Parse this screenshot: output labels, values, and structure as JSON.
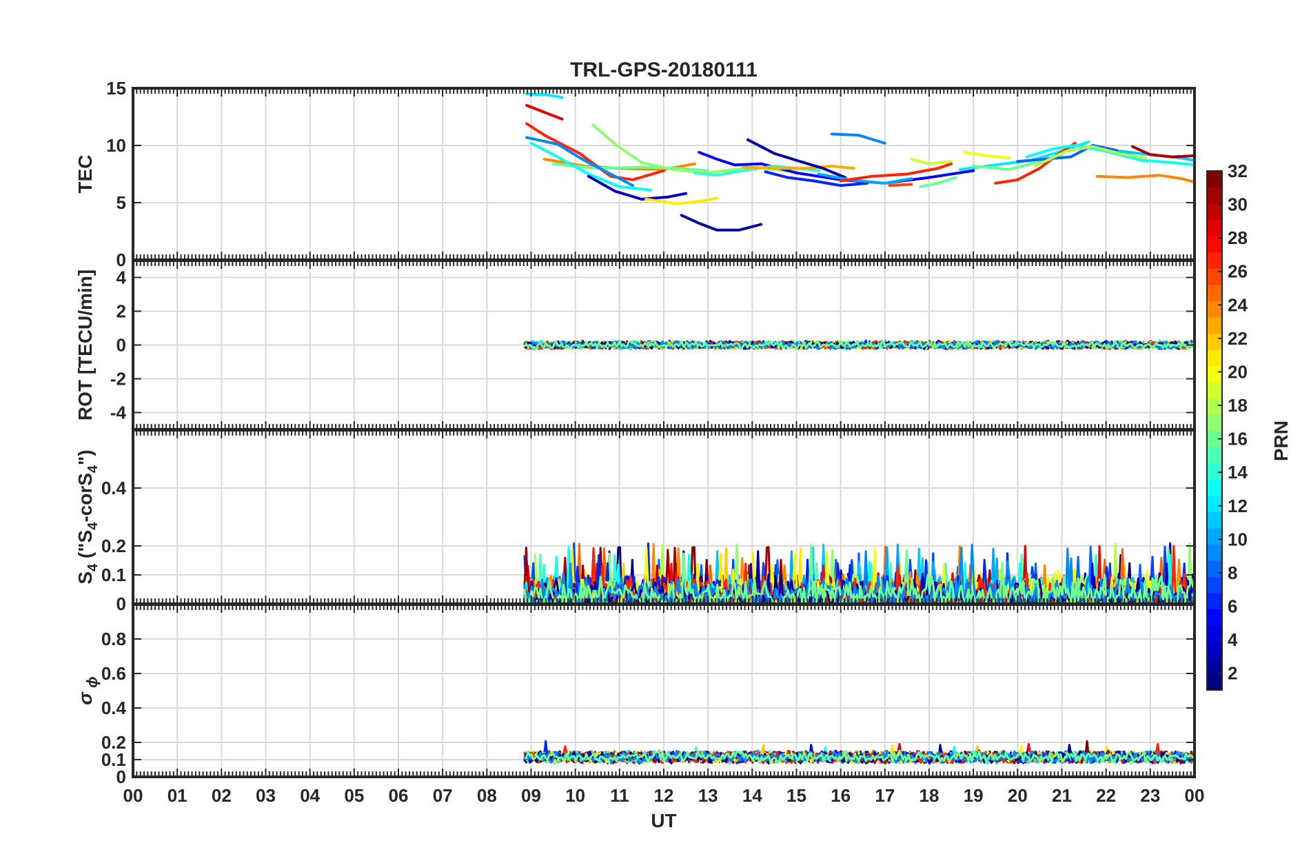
{
  "chart_data": {
    "type": "line",
    "title": "TRL-GPS-20180111",
    "xlabel": "UT",
    "x_ticks": [
      "00",
      "01",
      "02",
      "03",
      "04",
      "05",
      "06",
      "07",
      "08",
      "09",
      "10",
      "11",
      "12",
      "13",
      "14",
      "15",
      "16",
      "17",
      "18",
      "19",
      "20",
      "21",
      "22",
      "23",
      "00"
    ],
    "xlim": [
      0,
      24
    ],
    "colorbar": {
      "label": "PRN",
      "range": [
        1,
        32
      ],
      "ticks": [
        "2",
        "4",
        "6",
        "8",
        "10",
        "12",
        "14",
        "16",
        "18",
        "20",
        "22",
        "24",
        "26",
        "28",
        "30",
        "32"
      ]
    },
    "panels": [
      {
        "id": "tec",
        "ylabel": "TEC",
        "ylim": [
          0,
          15
        ],
        "y_ticks": [
          0,
          5,
          10,
          15
        ],
        "y_tick_labels": [
          "0",
          "5",
          "10",
          "15"
        ],
        "series": [
          {
            "prn": 24,
            "points": [
              [
                9.3,
                8.8
              ],
              [
                10.2,
                8.2
              ],
              [
                11,
                8.0
              ],
              [
                12,
                7.9
              ],
              [
                12.7,
                8.4
              ]
            ]
          },
          {
            "prn": 16,
            "points": [
              [
                9.5,
                8.4
              ],
              [
                10.5,
                8.0
              ],
              [
                11.5,
                8.1
              ],
              [
                12.3,
                8.0
              ],
              [
                13,
                7.8
              ]
            ]
          },
          {
            "prn": 27,
            "points": [
              [
                8.9,
                11.9
              ],
              [
                9.3,
                10.9
              ],
              [
                10.1,
                9.3
              ],
              [
                10.8,
                7.3
              ],
              [
                11.3,
                7.0
              ],
              [
                12,
                7.8
              ]
            ]
          },
          {
            "prn": 29,
            "points": [
              [
                8.9,
                13.5
              ],
              [
                9.3,
                12.9
              ],
              [
                9.7,
                12.3
              ]
            ]
          },
          {
            "prn": 12,
            "points": [
              [
                8.9,
                14.5
              ],
              [
                9.4,
                14.4
              ],
              [
                9.7,
                14.2
              ]
            ]
          },
          {
            "prn": 9,
            "points": [
              [
                8.9,
                10.7
              ],
              [
                9.6,
                10.1
              ],
              [
                10.2,
                8.7
              ],
              [
                10.8,
                7.5
              ],
              [
                11.3,
                6.5
              ]
            ]
          },
          {
            "prn": 13,
            "points": [
              [
                9.0,
                10.2
              ],
              [
                9.6,
                9.0
              ],
              [
                10.3,
                7.5
              ],
              [
                11,
                6.4
              ],
              [
                11.7,
                6.1
              ]
            ]
          },
          {
            "prn": 3,
            "points": [
              [
                10.3,
                7.3
              ],
              [
                10.9,
                6.0
              ],
              [
                11.5,
                5.3
              ],
              [
                12.1,
                5.5
              ],
              [
                12.5,
                5.8
              ]
            ]
          },
          {
            "prn": 21,
            "points": [
              [
                11.6,
                5.3
              ],
              [
                12.3,
                4.9
              ],
              [
                12.8,
                5.1
              ],
              [
                13.2,
                5.4
              ]
            ]
          },
          {
            "prn": 17,
            "points": [
              [
                10.4,
                11.8
              ],
              [
                10.9,
                10.1
              ],
              [
                11.5,
                8.5
              ],
              [
                12.2,
                7.9
              ],
              [
                13,
                7.6
              ],
              [
                14,
                8.1
              ],
              [
                15,
                7.7
              ]
            ]
          },
          {
            "prn": 2,
            "points": [
              [
                12.4,
                3.9
              ],
              [
                12.8,
                3.2
              ],
              [
                13.2,
                2.6
              ],
              [
                13.7,
                2.6
              ],
              [
                14.2,
                3.1
              ]
            ]
          },
          {
            "prn": 5,
            "points": [
              [
                12.8,
                9.4
              ],
              [
                13.2,
                8.8
              ],
              [
                13.6,
                8.3
              ],
              [
                14.2,
                8.4
              ],
              [
                15,
                7.6
              ],
              [
                16,
                7.0
              ],
              [
                17,
                6.7
              ],
              [
                18,
                7.2
              ],
              [
                19,
                7.8
              ]
            ]
          },
          {
            "prn": 14,
            "points": [
              [
                12.7,
                7.6
              ],
              [
                13.2,
                7.4
              ],
              [
                13.8,
                7.8
              ],
              [
                14.5,
                8.2
              ],
              [
                15.5,
                7.8
              ]
            ]
          },
          {
            "prn": 23,
            "points": [
              [
                13.8,
                8.1
              ],
              [
                14.5,
                8.0
              ],
              [
                15.2,
                8.0
              ],
              [
                15.8,
                8.2
              ],
              [
                16.3,
                8.0
              ]
            ]
          },
          {
            "prn": 2,
            "points": [
              [
                13.9,
                10.5
              ],
              [
                14.5,
                9.3
              ],
              [
                15,
                8.7
              ],
              [
                15.6,
                8.0
              ],
              [
                16.1,
                7.2
              ]
            ]
          },
          {
            "prn": 6,
            "points": [
              [
                14.3,
                7.7
              ],
              [
                14.8,
                7.2
              ],
              [
                15.4,
                6.9
              ],
              [
                16,
                6.5
              ],
              [
                16.6,
                6.7
              ]
            ]
          },
          {
            "prn": 9,
            "points": [
              [
                15.8,
                11.0
              ],
              [
                16.4,
                10.9
              ],
              [
                17.0,
                10.2
              ]
            ]
          },
          {
            "prn": 10,
            "points": [
              [
                15.5,
                7.5
              ],
              [
                16.2,
                7.0
              ],
              [
                17,
                6.7
              ],
              [
                17.6,
                7.1
              ]
            ]
          },
          {
            "prn": 27,
            "points": [
              [
                16.0,
                6.9
              ],
              [
                16.7,
                7.3
              ],
              [
                17.5,
                7.5
              ],
              [
                18.2,
                8.0
              ],
              [
                18.5,
                8.4
              ]
            ]
          },
          {
            "prn": 26,
            "points": [
              [
                17.1,
                6.5
              ],
              [
                17.6,
                6.6
              ]
            ]
          },
          {
            "prn": 19,
            "points": [
              [
                17.6,
                8.8
              ],
              [
                18,
                8.4
              ],
              [
                18.5,
                8.6
              ]
            ]
          },
          {
            "prn": 16,
            "points": [
              [
                17.8,
                6.4
              ],
              [
                18.2,
                6.7
              ],
              [
                18.6,
                7.2
              ]
            ]
          },
          {
            "prn": 20,
            "points": [
              [
                18.8,
                9.4
              ],
              [
                19.3,
                9.1
              ],
              [
                19.8,
                8.9
              ]
            ]
          },
          {
            "prn": 12,
            "points": [
              [
                18.7,
                7.9
              ],
              [
                19.5,
                8.3
              ],
              [
                20.3,
                8.7
              ],
              [
                21,
                9.5
              ],
              [
                21.6,
                10.3
              ]
            ]
          },
          {
            "prn": 16,
            "points": [
              [
                19.0,
                8.2
              ],
              [
                19.8,
                7.9
              ],
              [
                20.5,
                8.6
              ],
              [
                21,
                9.2
              ]
            ]
          },
          {
            "prn": 27,
            "points": [
              [
                19.5,
                6.7
              ],
              [
                20,
                7.0
              ],
              [
                20.5,
                8.0
              ],
              [
                20.9,
                9.2
              ],
              [
                21.3,
                10.2
              ]
            ]
          },
          {
            "prn": 8,
            "points": [
              [
                20.0,
                8.6
              ],
              [
                20.6,
                8.8
              ],
              [
                21.2,
                9.0
              ],
              [
                21.7,
                10.0
              ],
              [
                22.2,
                9.6
              ],
              [
                22.7,
                9.0
              ]
            ]
          },
          {
            "prn": 13,
            "points": [
              [
                20.2,
                9.0
              ],
              [
                20.8,
                9.7
              ],
              [
                21.3,
                10.0
              ],
              [
                22,
                9.5
              ],
              [
                22.8,
                8.7
              ],
              [
                23.5,
                8.5
              ],
              [
                24,
                8.3
              ]
            ]
          },
          {
            "prn": 18,
            "points": [
              [
                20.4,
                8.2
              ],
              [
                21.1,
                9.5
              ],
              [
                21.7,
                9.9
              ],
              [
                22.3,
                9.3
              ],
              [
                22.9,
                8.9
              ]
            ]
          },
          {
            "prn": 11,
            "points": [
              [
                22.3,
                9.5
              ],
              [
                23,
                9.2
              ],
              [
                23.7,
                8.9
              ],
              [
                24,
                8.7
              ]
            ]
          },
          {
            "prn": 24,
            "points": [
              [
                21.8,
                7.3
              ],
              [
                22.5,
                7.2
              ],
              [
                23.2,
                7.4
              ],
              [
                23.7,
                7.1
              ],
              [
                24,
                6.8
              ]
            ]
          },
          {
            "prn": 31,
            "points": [
              [
                22.6,
                9.9
              ],
              [
                23,
                9.2
              ],
              [
                23.5,
                9.0
              ],
              [
                24,
                9.1
              ]
            ]
          }
        ]
      },
      {
        "id": "rot",
        "ylabel": "ROT [TECU/min]",
        "ylim": [
          -5,
          5
        ],
        "y_ticks": [
          -4,
          -2,
          0,
          2,
          4
        ],
        "y_tick_labels": [
          "-4",
          "-2",
          "0",
          "2",
          "4"
        ],
        "noise": {
          "start": 8.85,
          "end": 24,
          "base": 0,
          "amplitude": 0.2,
          "spike_chance": 0.0,
          "spike_max": 0
        }
      },
      {
        "id": "s4",
        "ylabel": "S4 (\"S4-corS4\")",
        "ylim": [
          0,
          0.6
        ],
        "y_ticks": [
          0,
          0.1,
          0.2,
          0.4
        ],
        "y_tick_labels": [
          "0",
          "0.1",
          "0.2",
          "0.4"
        ],
        "noise": {
          "start": 8.85,
          "end": 24,
          "base": 0.03,
          "amplitude": 0.06,
          "spike_chance": 0.03,
          "spike_max": 0.21
        }
      },
      {
        "id": "sigma",
        "ylabel": "σ ϕ",
        "ylim": [
          0,
          1
        ],
        "y_ticks": [
          0,
          0.1,
          0.2,
          0.4,
          0.6,
          0.8
        ],
        "y_tick_labels": [
          "0",
          "0.1",
          "0.2",
          "0.4",
          "0.6",
          "0.8"
        ],
        "noise": {
          "start": 8.85,
          "end": 24,
          "base": 0.115,
          "amplitude": 0.03,
          "spike_chance": 0.002,
          "spike_max": 0.21
        }
      }
    ]
  }
}
